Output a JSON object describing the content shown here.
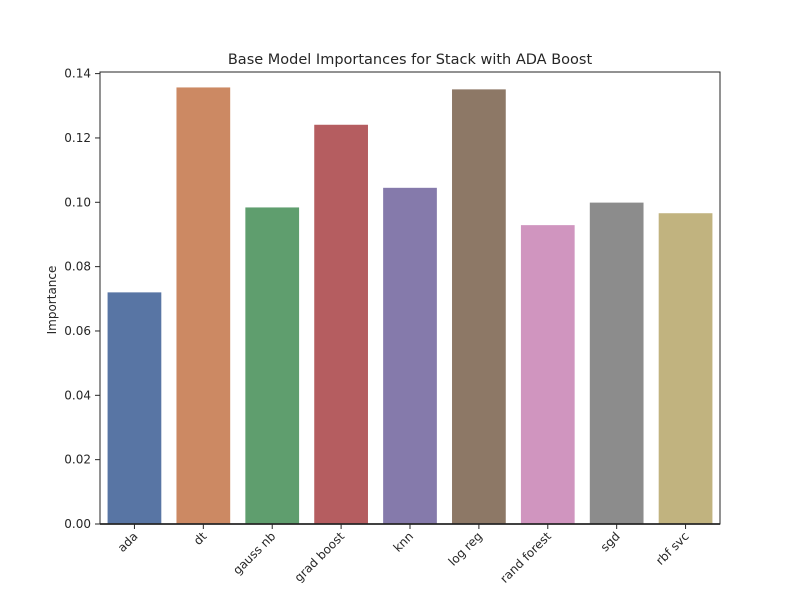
{
  "chart_data": {
    "type": "bar",
    "title": "Base Model Importances for Stack with ADA Boost",
    "xlabel": "",
    "ylabel": "Importance",
    "categories": [
      "ada",
      "dt",
      "gauss nb",
      "grad boost",
      "knn",
      "log reg",
      "rand forest",
      "sgd",
      "rbf svc"
    ],
    "values": [
      0.072,
      0.1357,
      0.0984,
      0.1241,
      0.1045,
      0.1351,
      0.0929,
      0.0999,
      0.0966
    ],
    "colors": [
      "#5875a4",
      "#cc8963",
      "#5f9e6e",
      "#b55d60",
      "#857aab",
      "#8d7866",
      "#d095bf",
      "#8c8c8c",
      "#c1b37f"
    ],
    "ylim": [
      0,
      0.1405
    ],
    "yticks": [
      0.0,
      0.02,
      0.04,
      0.06,
      0.08,
      0.1,
      0.12,
      0.14
    ],
    "ytick_labels": [
      "0.00",
      "0.02",
      "0.04",
      "0.06",
      "0.08",
      "0.10",
      "0.12",
      "0.14"
    ],
    "grid": false,
    "legend": "none"
  }
}
